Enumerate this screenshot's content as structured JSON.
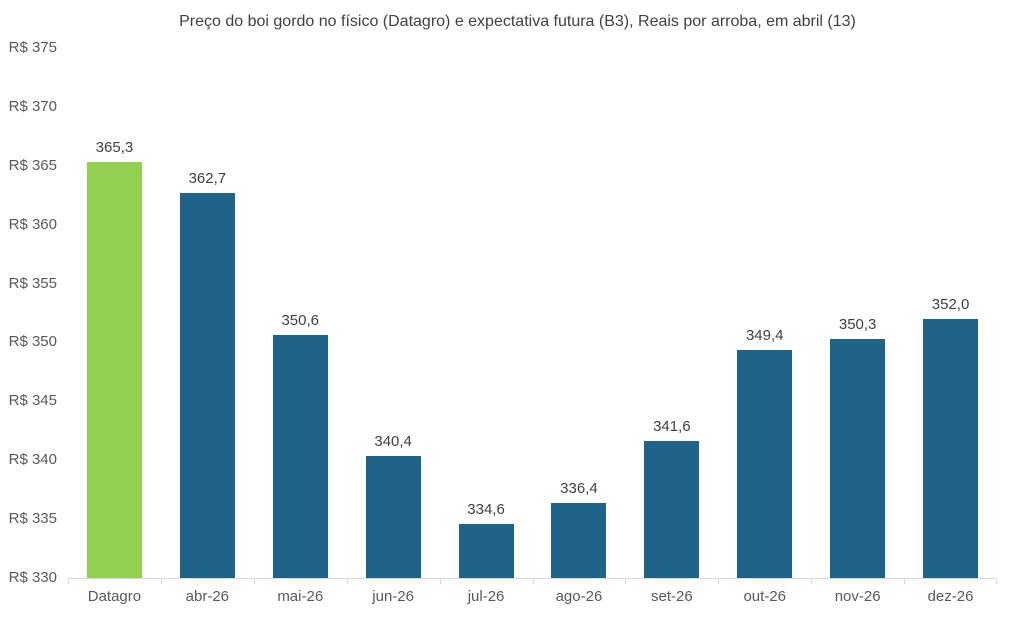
{
  "chart_data": {
    "type": "bar",
    "title": "Preço do boi gordo no físico (Datagro)  e expectativa futura (B3), Reais por arroba, em abril (13)",
    "categories": [
      "Datagro",
      "abr-26",
      "mai-26",
      "jun-26",
      "jul-26",
      "ago-26",
      "set-26",
      "out-26",
      "nov-26",
      "dez-26"
    ],
    "values": [
      365.3,
      362.7,
      350.6,
      340.4,
      334.6,
      336.4,
      341.6,
      349.4,
      350.3,
      352.0
    ],
    "value_labels": [
      "365,3",
      "362,7",
      "350,6",
      "340,4",
      "334,6",
      "336,4",
      "341,6",
      "349,4",
      "350,3",
      "352,0"
    ],
    "xlabel": "",
    "ylabel": "",
    "ylim": [
      330,
      375
    ],
    "yticks": [
      375,
      370,
      365,
      360,
      355,
      350,
      345,
      340,
      335,
      330
    ],
    "ytick_labels": [
      "R$ 375",
      "R$ 370",
      "R$ 365",
      "R$ 360",
      "R$ 355",
      "R$ 350",
      "R$ 345",
      "R$ 340",
      "R$ 335",
      "R$ 330"
    ],
    "grid": false,
    "legend": "none",
    "highlight_index": 0,
    "colors": {
      "highlight_bar": "#92D050",
      "default_bar": "#1F6488",
      "axis_line": "#D9D9D9",
      "title_text": "#404040",
      "data_label_text": "#404040",
      "tick_label_text": "#595959",
      "background": "#FFFFFF"
    }
  }
}
